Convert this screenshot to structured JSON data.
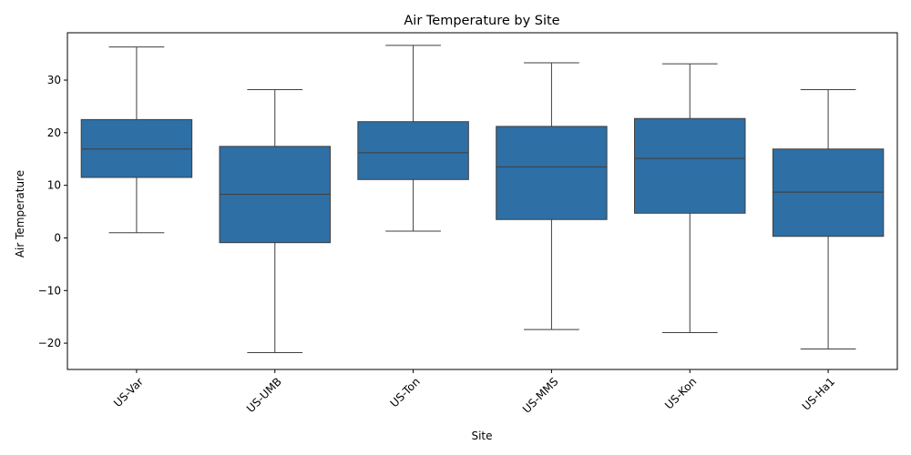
{
  "chart_data": {
    "type": "box",
    "title": "Air Temperature by Site",
    "xlabel": "Site",
    "ylabel": "Air Temperature",
    "ylim": [
      -25,
      39
    ],
    "yticks": [
      -20,
      -10,
      0,
      10,
      20,
      30
    ],
    "ytick_labels": [
      "−20",
      "−10",
      "0",
      "10",
      "20",
      "30"
    ],
    "grid": false,
    "box_color": "#2e6fa5",
    "categories": [
      "US-Var",
      "US-UMB",
      "US-Ton",
      "US-MMS",
      "US-Kon",
      "US-Ha1"
    ],
    "boxes": [
      {
        "site": "US-Var",
        "min": 1.0,
        "q1": 11.5,
        "median": 16.9,
        "q3": 22.5,
        "max": 36.3
      },
      {
        "site": "US-UMB",
        "min": -21.8,
        "q1": -0.9,
        "median": 8.3,
        "q3": 17.4,
        "max": 28.2
      },
      {
        "site": "US-Ton",
        "min": 1.3,
        "q1": 11.1,
        "median": 16.2,
        "q3": 22.1,
        "max": 36.6
      },
      {
        "site": "US-MMS",
        "min": -17.4,
        "q1": 3.5,
        "median": 13.5,
        "q3": 21.2,
        "max": 33.3
      },
      {
        "site": "US-Kon",
        "min": -18.0,
        "q1": 4.7,
        "median": 15.1,
        "q3": 22.7,
        "max": 33.1
      },
      {
        "site": "US-Ha1",
        "min": -21.1,
        "q1": 0.3,
        "median": 8.7,
        "q3": 16.9,
        "max": 28.2
      }
    ]
  }
}
